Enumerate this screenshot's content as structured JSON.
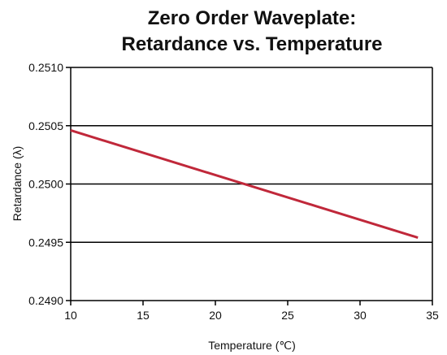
{
  "chart_data": {
    "type": "line",
    "title_lines": [
      "Zero Order Waveplate:",
      "Retardance vs. Temperature"
    ],
    "xlabel": "Temperature (℃)",
    "ylabel": "Retardance (λ)",
    "xlim": [
      10,
      35
    ],
    "ylim": [
      0.249,
      0.251
    ],
    "x_ticks": [
      10,
      15,
      20,
      25,
      30,
      35
    ],
    "x_tick_labels": [
      "10",
      "15",
      "20",
      "25",
      "30",
      "35"
    ],
    "y_ticks": [
      0.249,
      0.2495,
      0.25,
      0.2505,
      0.251
    ],
    "y_tick_labels": [
      "0.2490",
      "0.2495",
      "0.2500",
      "0.2505",
      "0.2510"
    ],
    "grid": "horizontal",
    "series": [
      {
        "color": "#c0283a",
        "x": [
          10,
          34
        ],
        "y": [
          0.25046,
          0.24954
        ]
      }
    ]
  }
}
